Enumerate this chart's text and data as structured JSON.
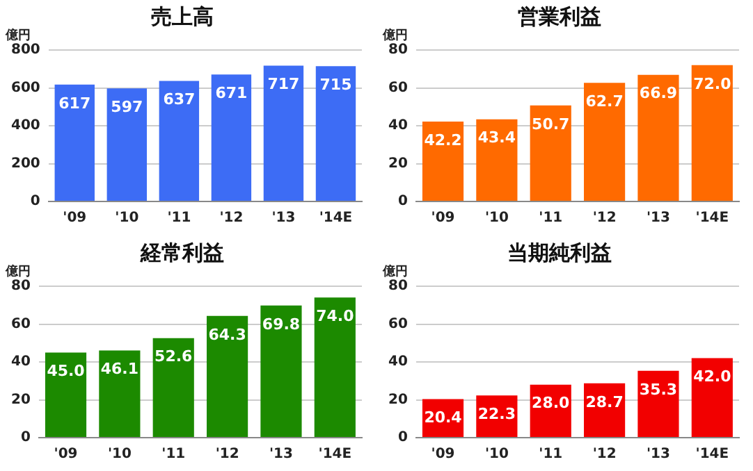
{
  "chart_data": [
    {
      "type": "bar",
      "title": "売上高",
      "ylabel": "億円",
      "categories": [
        "'09",
        "'10",
        "'11",
        "'12",
        "'13",
        "'14E"
      ],
      "values": [
        617,
        597,
        637,
        671,
        717,
        715
      ],
      "color": "#3d6cf5",
      "ylim": [
        0,
        800
      ],
      "yticks": [
        0,
        200,
        400,
        600,
        800
      ],
      "grid": "y",
      "data_labels": true
    },
    {
      "type": "bar",
      "title": "営業利益",
      "ylabel": "億円",
      "categories": [
        "'09",
        "'10",
        "'11",
        "'12",
        "'13",
        "'14E"
      ],
      "values": [
        42.2,
        43.4,
        50.7,
        62.7,
        66.9,
        72.0
      ],
      "value_labels": [
        "42.2",
        "43.4",
        "50.7",
        "62.7",
        "66.9",
        "72.0"
      ],
      "color": "#ff6a00",
      "ylim": [
        0,
        80
      ],
      "yticks": [
        0,
        20,
        40,
        60,
        80
      ],
      "grid": "y"
    },
    {
      "type": "bar",
      "title": "経常利益",
      "ylabel": "億円",
      "categories": [
        "'09",
        "'10",
        "'11",
        "'12",
        "'13",
        "'14E"
      ],
      "values": [
        45.0,
        46.1,
        52.6,
        64.3,
        69.8,
        74.0
      ],
      "value_labels": [
        "45.0",
        "46.1",
        "52.6",
        "64.3",
        "69.8",
        "74.0"
      ],
      "color": "#1c8a00",
      "ylim": [
        0,
        80
      ],
      "yticks": [
        0,
        20,
        40,
        60,
        80
      ],
      "grid": "y"
    },
    {
      "type": "bar",
      "title": "当期純利益",
      "ylabel": "億円",
      "categories": [
        "'09",
        "'10",
        "'11",
        "'12",
        "'13",
        "'14E"
      ],
      "values": [
        20.4,
        22.3,
        28.0,
        28.7,
        35.3,
        42.0
      ],
      "value_labels": [
        "20.4",
        "22.3",
        "28.0",
        "28.7",
        "35.3",
        "42.0"
      ],
      "color": "#f20000",
      "ylim": [
        0,
        80
      ],
      "yticks": [
        0,
        20,
        40,
        60,
        80
      ],
      "grid": "y"
    }
  ]
}
